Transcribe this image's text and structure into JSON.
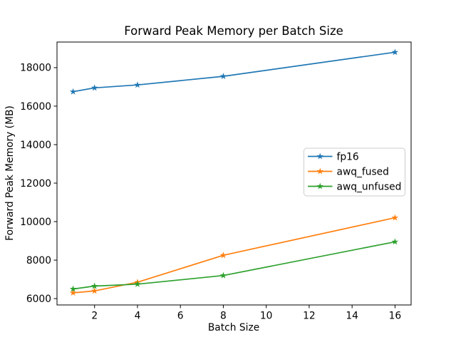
{
  "chart_data": {
    "type": "line",
    "title": "Forward Peak Memory per Batch Size",
    "xlabel": "Batch Size",
    "ylabel": "Forward Peak Memory (MB)",
    "x": [
      1,
      2,
      4,
      8,
      16
    ],
    "series": [
      {
        "name": "fp16",
        "color": "#1f77b4",
        "values": [
          16750,
          16950,
          17100,
          17550,
          18800
        ]
      },
      {
        "name": "awq_fused",
        "color": "#ff7f0e",
        "values": [
          6300,
          6400,
          6850,
          8250,
          10200
        ]
      },
      {
        "name": "awq_unfused",
        "color": "#2ca02c",
        "values": [
          6500,
          6650,
          6750,
          7200,
          8950
        ]
      }
    ],
    "xticks": [
      2,
      4,
      6,
      8,
      10,
      12,
      14,
      16
    ],
    "yticks": [
      6000,
      8000,
      10000,
      12000,
      14000,
      16000,
      18000
    ],
    "xlim": [
      0.25,
      16.75
    ],
    "ylim": [
      5670,
      19330
    ],
    "grid": false,
    "marker": "star",
    "legend_position": "center right",
    "colors": {
      "spine": "#000000",
      "background": "#ffffff",
      "legend_border": "#cccccc",
      "legend_background": "#ffffff"
    }
  }
}
